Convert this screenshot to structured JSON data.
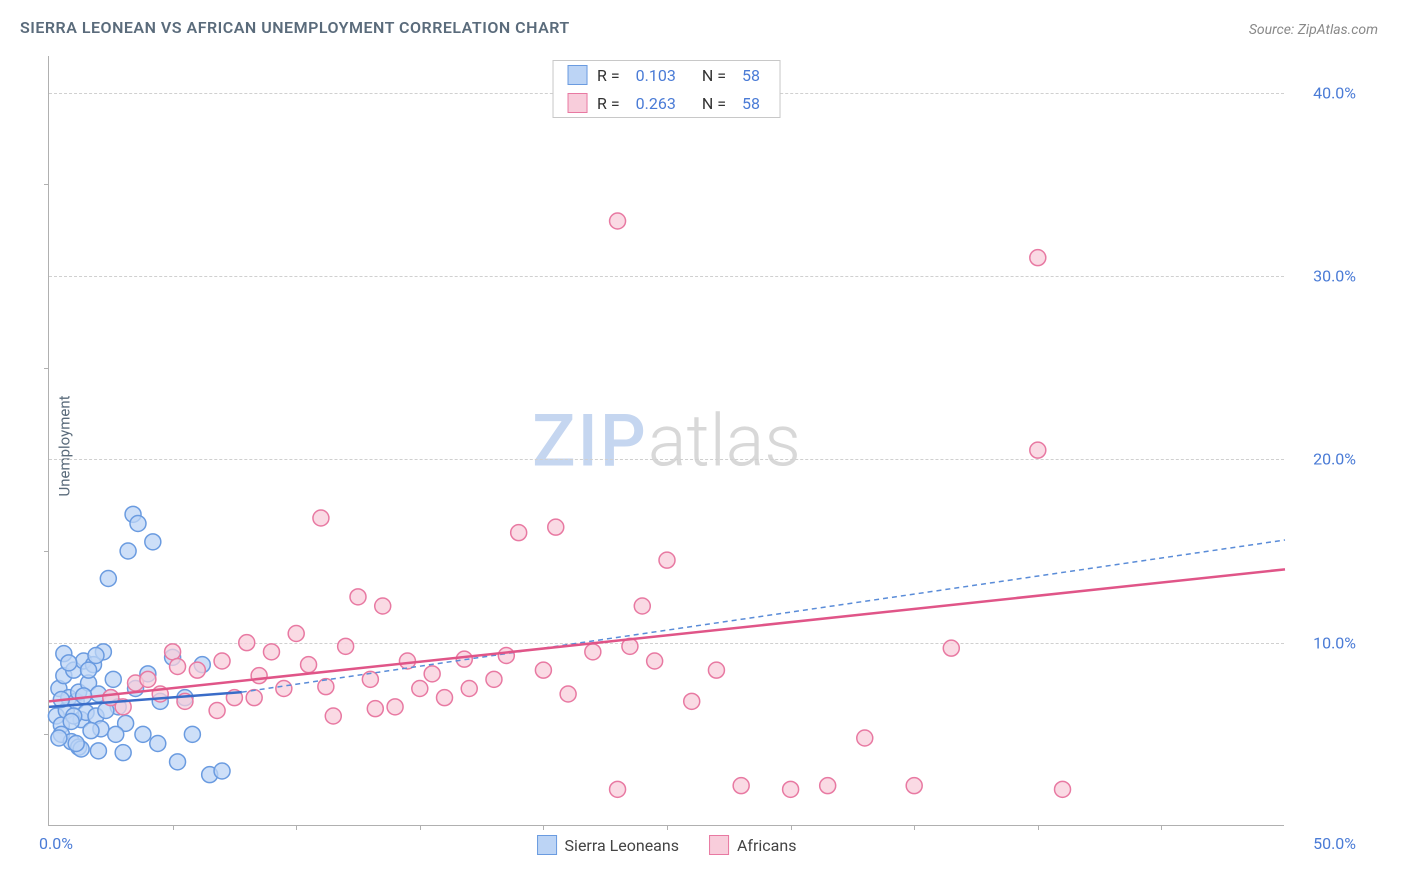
{
  "title": "SIERRA LEONEAN VS AFRICAN UNEMPLOYMENT CORRELATION CHART",
  "source": "Source: ZipAtlas.com",
  "watermark_zip": "ZIP",
  "watermark_atlas": "atlas",
  "y_axis_title": "Unemployment",
  "chart": {
    "type": "scatter",
    "xlim": [
      0,
      50
    ],
    "ylim": [
      0,
      42
    ],
    "x_origin_label": "0.0%",
    "x_max_label": "50.0%",
    "y_ticks": [
      {
        "value": 10,
        "label": "10.0%"
      },
      {
        "value": 20,
        "label": "20.0%"
      },
      {
        "value": 30,
        "label": "30.0%"
      },
      {
        "value": 40,
        "label": "40.0%"
      }
    ],
    "x_minor_ticks": [
      5,
      10,
      15,
      20,
      25,
      30,
      35,
      40,
      45
    ],
    "y_minor_ticks": [
      5,
      15,
      25,
      35
    ],
    "background_color": "#ffffff",
    "grid_color": "#d0d0d0",
    "series": [
      {
        "name": "Sierra Leoneans",
        "marker_color_fill": "#bcd4f5",
        "marker_color_stroke": "#6a9be0",
        "marker_radius": 8,
        "trend_line": {
          "x1": 0,
          "y1": 6.5,
          "x2": 7.8,
          "y2": 7.3,
          "color": "#3a6cc8",
          "width": 2.5,
          "dash": "none"
        },
        "trend_extrapolate": {
          "x1": 7.8,
          "y1": 7.3,
          "x2": 50,
          "y2": 15.6,
          "color": "#5a8cd8",
          "width": 1.5,
          "dash": "5,4"
        },
        "r_value": "0.103",
        "n_value": "58",
        "points": [
          [
            0.3,
            6.0
          ],
          [
            0.4,
            7.5
          ],
          [
            0.5,
            5.5
          ],
          [
            0.6,
            8.2
          ],
          [
            0.7,
            6.3
          ],
          [
            0.8,
            7.0
          ],
          [
            0.5,
            5.0
          ],
          [
            1.0,
            8.5
          ],
          [
            1.1,
            6.8
          ],
          [
            1.2,
            7.3
          ],
          [
            1.3,
            5.8
          ],
          [
            1.4,
            9.0
          ],
          [
            1.5,
            6.2
          ],
          [
            0.9,
            4.6
          ],
          [
            1.6,
            7.8
          ],
          [
            1.8,
            8.8
          ],
          [
            1.9,
            6.0
          ],
          [
            2.0,
            7.2
          ],
          [
            2.1,
            5.3
          ],
          [
            2.2,
            9.5
          ],
          [
            1.2,
            4.3
          ],
          [
            2.4,
            13.5
          ],
          [
            2.5,
            7.0
          ],
          [
            2.6,
            8.0
          ],
          [
            2.8,
            6.5
          ],
          [
            3.0,
            4.0
          ],
          [
            3.2,
            15.0
          ],
          [
            2.0,
            4.1
          ],
          [
            3.4,
            17.0
          ],
          [
            3.5,
            7.5
          ],
          [
            3.6,
            16.5
          ],
          [
            3.8,
            5.0
          ],
          [
            4.0,
            8.3
          ],
          [
            4.2,
            15.5
          ],
          [
            4.5,
            6.8
          ],
          [
            1.7,
            5.2
          ],
          [
            5.0,
            9.2
          ],
          [
            5.2,
            3.5
          ],
          [
            5.5,
            7.0
          ],
          [
            3.1,
            5.6
          ],
          [
            5.8,
            5.0
          ],
          [
            4.4,
            4.5
          ],
          [
            6.2,
            8.8
          ],
          [
            6.5,
            2.8
          ],
          [
            7.0,
            3.0
          ],
          [
            0.6,
            9.4
          ],
          [
            1.3,
            4.2
          ],
          [
            0.8,
            8.9
          ],
          [
            2.7,
            5.0
          ],
          [
            1.0,
            6.0
          ],
          [
            1.4,
            7.1
          ],
          [
            0.4,
            4.8
          ],
          [
            2.3,
            6.3
          ],
          [
            1.6,
            8.5
          ],
          [
            0.9,
            5.7
          ],
          [
            1.9,
            9.3
          ],
          [
            0.5,
            6.9
          ],
          [
            1.1,
            4.5
          ]
        ]
      },
      {
        "name": "Africans",
        "marker_color_fill": "#f8cddb",
        "marker_color_stroke": "#e879a2",
        "marker_radius": 8,
        "trend_line": {
          "x1": 0,
          "y1": 6.8,
          "x2": 50,
          "y2": 14.0,
          "color": "#e05588",
          "width": 2.5,
          "dash": "none"
        },
        "r_value": "0.263",
        "n_value": "58",
        "points": [
          [
            2.5,
            7.0
          ],
          [
            3.0,
            6.5
          ],
          [
            3.5,
            7.8
          ],
          [
            4.0,
            8.0
          ],
          [
            4.5,
            7.2
          ],
          [
            5.0,
            9.5
          ],
          [
            5.5,
            6.8
          ],
          [
            6.0,
            8.5
          ],
          [
            7.0,
            9.0
          ],
          [
            7.5,
            7.0
          ],
          [
            8.0,
            10.0
          ],
          [
            8.5,
            8.2
          ],
          [
            9.0,
            9.5
          ],
          [
            9.5,
            7.5
          ],
          [
            10.0,
            10.5
          ],
          [
            10.5,
            8.8
          ],
          [
            11.0,
            16.8
          ],
          [
            11.5,
            6.0
          ],
          [
            12.0,
            9.8
          ],
          [
            12.5,
            12.5
          ],
          [
            13.0,
            8.0
          ],
          [
            13.5,
            12.0
          ],
          [
            14.0,
            6.5
          ],
          [
            14.5,
            9.0
          ],
          [
            15.0,
            7.5
          ],
          [
            15.5,
            8.3
          ],
          [
            16.0,
            7.0
          ],
          [
            17.0,
            7.5
          ],
          [
            18.0,
            8.0
          ],
          [
            18.5,
            9.3
          ],
          [
            19.0,
            16.0
          ],
          [
            20.0,
            8.5
          ],
          [
            20.5,
            16.3
          ],
          [
            21.0,
            7.2
          ],
          [
            22.0,
            9.5
          ],
          [
            23.0,
            33.0
          ],
          [
            23.5,
            9.8
          ],
          [
            24.0,
            12.0
          ],
          [
            24.5,
            9.0
          ],
          [
            25.0,
            14.5
          ],
          [
            26.0,
            6.8
          ],
          [
            27.0,
            8.5
          ],
          [
            23.0,
            2.0
          ],
          [
            28.0,
            2.2
          ],
          [
            30.0,
            2.0
          ],
          [
            31.5,
            2.2
          ],
          [
            33.0,
            4.8
          ],
          [
            35.0,
            2.2
          ],
          [
            36.5,
            9.7
          ],
          [
            40.0,
            31.0
          ],
          [
            41.0,
            2.0
          ],
          [
            40.0,
            20.5
          ],
          [
            5.2,
            8.7
          ],
          [
            6.8,
            6.3
          ],
          [
            11.2,
            7.6
          ],
          [
            16.8,
            9.1
          ],
          [
            13.2,
            6.4
          ],
          [
            8.3,
            7.0
          ]
        ]
      }
    ],
    "legend_top": {
      "r_label": "R =",
      "n_label": "N ="
    },
    "legend_bottom_labels": [
      "Sierra Leoneans",
      "Africans"
    ]
  }
}
